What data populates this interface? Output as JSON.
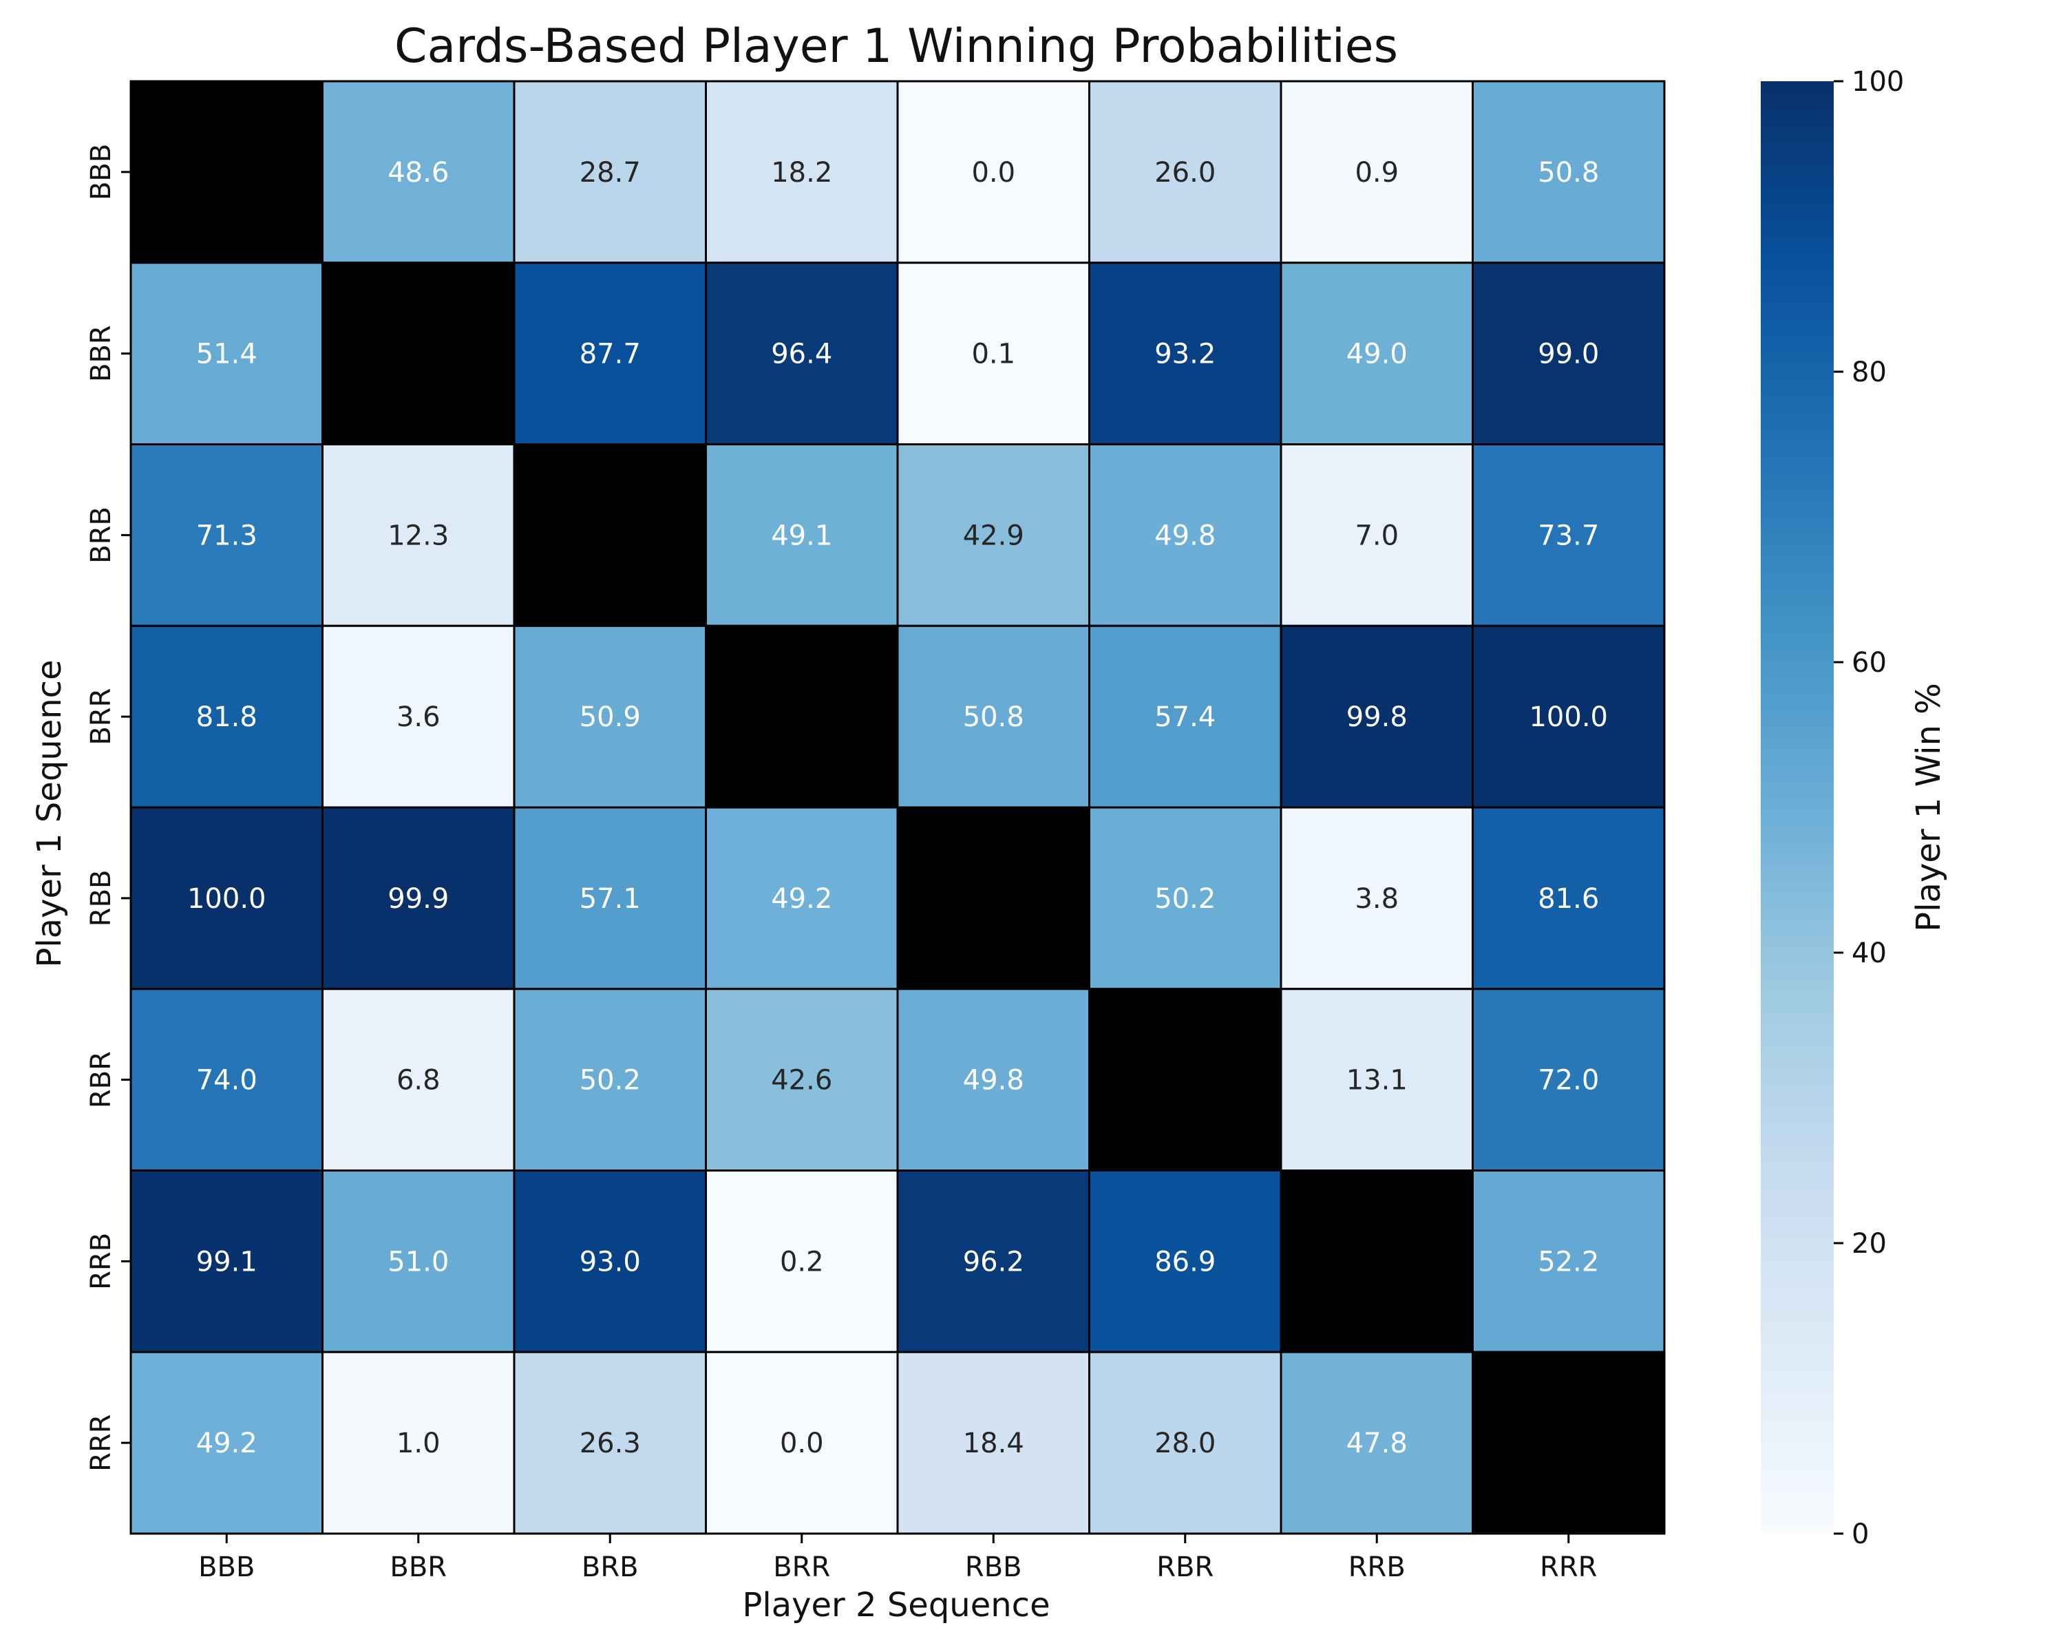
{
  "chart_data": {
    "type": "heatmap",
    "title": "Cards-Based Player 1 Winning Probabilities",
    "xlabel": "Player 2 Sequence",
    "ylabel": "Player 1 Sequence",
    "x_categories": [
      "BBB",
      "BBR",
      "BRB",
      "BRR",
      "RBB",
      "RBR",
      "RRB",
      "RRR"
    ],
    "y_categories": [
      "BBB",
      "BBR",
      "BRB",
      "BRR",
      "RBB",
      "RBR",
      "RRB",
      "RRR"
    ],
    "values": [
      [
        null,
        48.6,
        28.7,
        18.2,
        0.0,
        26.0,
        0.9,
        50.8
      ],
      [
        51.4,
        null,
        87.7,
        96.4,
        0.1,
        93.2,
        49.0,
        99.0
      ],
      [
        71.3,
        12.3,
        null,
        49.1,
        42.9,
        49.8,
        7.0,
        73.7
      ],
      [
        81.8,
        3.6,
        50.9,
        null,
        50.8,
        57.4,
        99.8,
        100.0
      ],
      [
        100.0,
        99.9,
        57.1,
        49.2,
        null,
        50.2,
        3.8,
        81.6
      ],
      [
        74.0,
        6.8,
        50.2,
        42.6,
        49.8,
        null,
        13.1,
        72.0
      ],
      [
        99.1,
        51.0,
        93.0,
        0.2,
        96.2,
        86.9,
        null,
        52.2
      ],
      [
        49.2,
        1.0,
        26.3,
        0.0,
        18.4,
        28.0,
        47.8,
        null
      ]
    ],
    "value_format": "0.0",
    "diagonal_color": "#000000",
    "colormap": "Blues",
    "colorbar": {
      "label": "Player 1 Win %",
      "range": [
        0,
        100
      ],
      "ticks": [
        0,
        20,
        40,
        60,
        80,
        100
      ]
    },
    "grid": true
  }
}
